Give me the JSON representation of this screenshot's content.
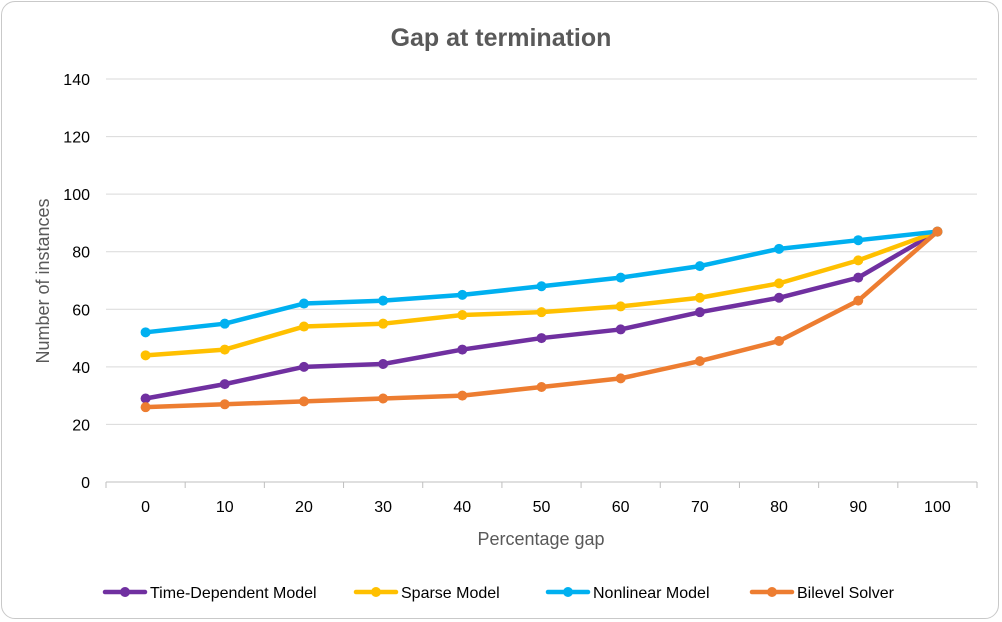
{
  "chart_data": {
    "type": "line",
    "title": "Gap at termination",
    "xlabel": "Percentage gap",
    "ylabel": "Number of instances",
    "categories": [
      "0",
      "10",
      "20",
      "30",
      "40",
      "50",
      "60",
      "70",
      "80",
      "90",
      "100"
    ],
    "ylim": [
      0,
      140
    ],
    "yticks": [
      0,
      20,
      40,
      60,
      80,
      100,
      120,
      140
    ],
    "grid": true,
    "legend_position": "bottom",
    "series": [
      {
        "name": "Time-Dependent Model",
        "color": "#7030A0",
        "values": [
          29,
          34,
          40,
          41,
          46,
          50,
          53,
          59,
          64,
          71,
          87
        ]
      },
      {
        "name": "Sparse Model",
        "color": "#FFC000",
        "values": [
          44,
          46,
          54,
          55,
          58,
          59,
          61,
          64,
          69,
          77,
          87
        ]
      },
      {
        "name": "Nonlinear Model",
        "color": "#00B0F0",
        "values": [
          52,
          55,
          62,
          63,
          65,
          68,
          71,
          75,
          81,
          84,
          87
        ]
      },
      {
        "name": "Bilevel Solver",
        "color": "#ED7D31",
        "values": [
          26,
          27,
          28,
          29,
          30,
          33,
          36,
          42,
          49,
          63,
          87
        ]
      }
    ]
  }
}
